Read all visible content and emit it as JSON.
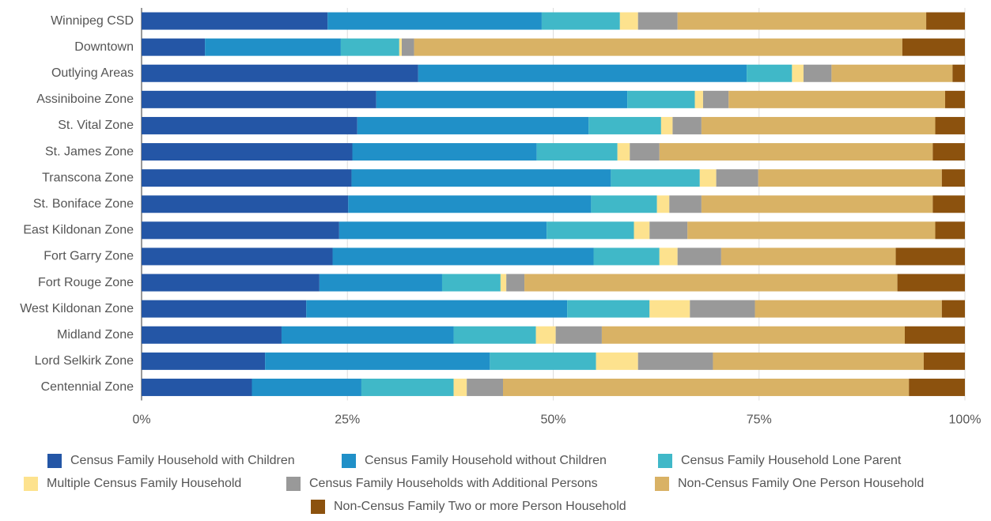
{
  "chart_data": {
    "type": "stacked-barh",
    "categories": [
      "Winnipeg CSD",
      "Downtown",
      "Outlying Areas",
      "Assiniboine Zone",
      "St. Vital Zone",
      "St. James Zone",
      "Transcona Zone",
      "St. Boniface Zone",
      "East Kildonan Zone",
      "Fort Garry Zone",
      "Fort Rouge Zone",
      "West Kildonan Zone",
      "Midland Zone",
      "Lord Selkirk Zone",
      "Centennial Zone"
    ],
    "series": [
      {
        "name": "Census Family Household with Children",
        "color": "#2456a6",
        "values": [
          22.6,
          7.7,
          33.6,
          28.5,
          26.2,
          25.6,
          25.5,
          25.1,
          24.0,
          23.2,
          21.6,
          20.0,
          17.0,
          15.0,
          13.4
        ]
      },
      {
        "name": "Census Family Household without Children",
        "color": "#2090c8",
        "values": [
          26.0,
          16.5,
          39.9,
          30.5,
          28.1,
          22.4,
          31.5,
          29.5,
          25.2,
          31.7,
          14.9,
          31.7,
          20.9,
          27.3,
          13.3
        ]
      },
      {
        "name": "Census Family Household Lone Parent",
        "color": "#40b8c8",
        "values": [
          9.5,
          7.1,
          5.5,
          8.2,
          8.8,
          9.8,
          10.8,
          8.0,
          10.6,
          8.0,
          7.1,
          10.0,
          10.0,
          12.9,
          11.2
        ]
      },
      {
        "name": "Multiple Census Family Household",
        "color": "#fde28e",
        "values": [
          2.2,
          0.3,
          1.4,
          1.0,
          1.4,
          1.5,
          2.0,
          1.5,
          1.9,
          2.2,
          0.7,
          4.9,
          2.4,
          5.1,
          1.6
        ]
      },
      {
        "name": "Census Family Households with Additional Persons",
        "color": "#999999",
        "values": [
          4.8,
          1.5,
          3.4,
          3.1,
          3.5,
          3.6,
          5.1,
          3.9,
          4.6,
          5.3,
          2.2,
          7.9,
          5.6,
          9.1,
          4.4
        ]
      },
      {
        "name": "Non-Census Family One Person Household",
        "color": "#d9b265",
        "values": [
          30.2,
          59.3,
          14.7,
          26.3,
          28.4,
          33.2,
          22.3,
          28.1,
          30.1,
          21.2,
          45.3,
          22.7,
          36.8,
          25.6,
          49.3
        ]
      },
      {
        "name": "Non-Census Family Two or more Person Household",
        "color": "#8c520e",
        "values": [
          4.7,
          7.6,
          1.5,
          2.4,
          3.6,
          3.9,
          2.8,
          3.9,
          3.6,
          8.4,
          8.2,
          2.8,
          7.3,
          5.0,
          6.8
        ]
      }
    ],
    "xlim": [
      0,
      100
    ],
    "xticks": [
      {
        "value": 0,
        "label": "0%"
      },
      {
        "value": 25,
        "label": "25%"
      },
      {
        "value": 50,
        "label": "50%"
      },
      {
        "value": 75,
        "label": "75%"
      },
      {
        "value": 100,
        "label": "100%"
      }
    ],
    "grid": true
  }
}
